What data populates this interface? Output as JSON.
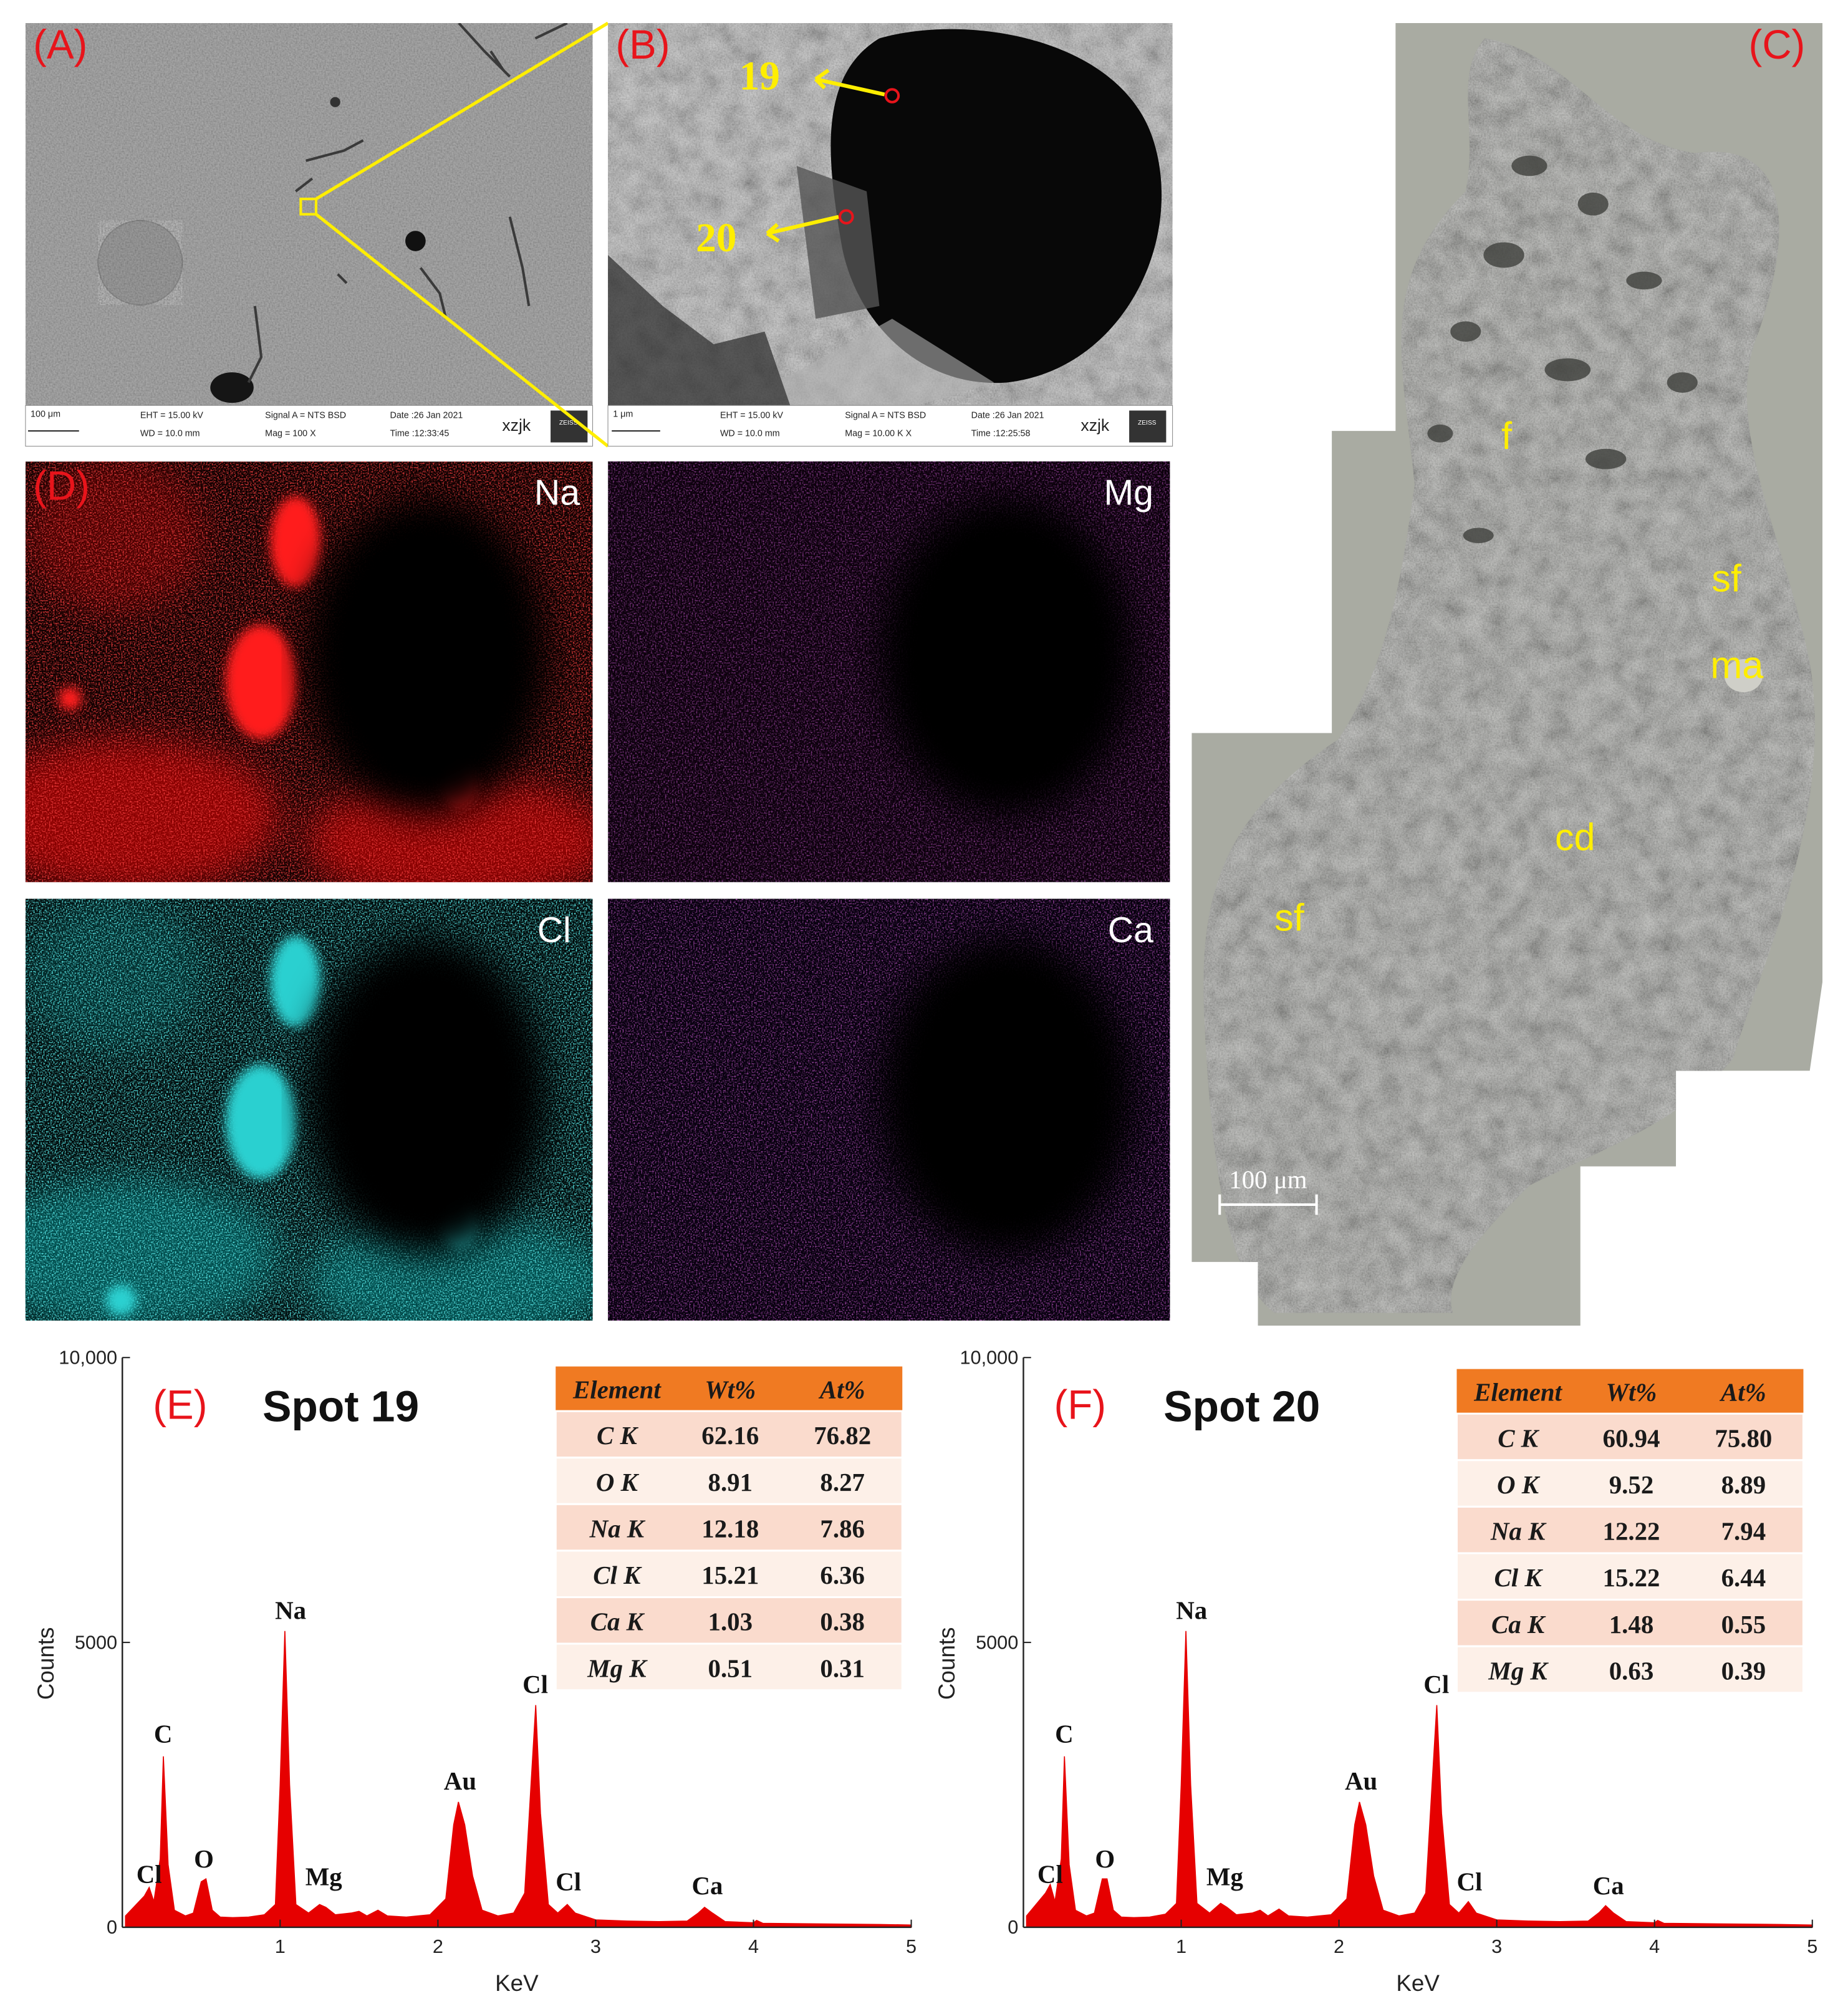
{
  "panel_a": {
    "label": "(A)",
    "scale_bar": "100 μm",
    "eht": "EHT = 15.00 kV",
    "wd": "WD = 10.0 mm",
    "signal": "Signal A = NTS BSD",
    "mag": "Mag =  100 X",
    "date": "Date :26 Jan 2021",
    "time": "Time :12:33:45",
    "user": "xzjk",
    "logo": "ZEISS"
  },
  "panel_b": {
    "label": "(B)",
    "scale_bar": "1 μm",
    "eht": "EHT = 15.00 kV",
    "wd": "WD = 10.0 mm",
    "signal": "Signal A = NTS BSD",
    "mag": "Mag =  10.00 K X",
    "date": "Date :26 Jan 2021",
    "time": "Time :12:25:58",
    "user": "xzjk",
    "logo": "ZEISS",
    "spots": [
      "19",
      "20"
    ]
  },
  "panel_c": {
    "label": "(C)",
    "annotations": [
      "f",
      "sf",
      "ma",
      "cd",
      "sf"
    ],
    "scale_bar": "100 μm"
  },
  "panel_d": {
    "label": "(D)",
    "elements": [
      "Na",
      "Mg",
      "Cl",
      "Ca"
    ]
  },
  "chart_data": [
    {
      "type": "area",
      "panel_label": "(E)",
      "title": "Spot 19",
      "x_label": "KeV",
      "y_label": "Counts",
      "color": "#e60000",
      "x": [
        0.02,
        0.14,
        0.17,
        0.2,
        0.24,
        0.26,
        0.29,
        0.33,
        0.4,
        0.45,
        0.5,
        0.53,
        0.57,
        0.62,
        0.7,
        0.8,
        0.9,
        0.97,
        1.0,
        1.03,
        1.06,
        1.1,
        1.18,
        1.25,
        1.29,
        1.35,
        1.45,
        1.5,
        1.55,
        1.62,
        1.68,
        1.8,
        1.95,
        2.05,
        2.1,
        2.13,
        2.17,
        2.22,
        2.28,
        2.38,
        2.48,
        2.55,
        2.59,
        2.62,
        2.65,
        2.7,
        2.76,
        2.82,
        2.87,
        3.0,
        3.2,
        3.4,
        3.58,
        3.65,
        3.69,
        3.74,
        3.82,
        4.0,
        4.02,
        4.06,
        4.4,
        4.8,
        5.0
      ],
      "values": [
        200,
        550,
        700,
        450,
        1200,
        3000,
        1100,
        300,
        200,
        250,
        800,
        850,
        300,
        180,
        170,
        180,
        220,
        400,
        2500,
        5200,
        2500,
        400,
        250,
        400,
        350,
        220,
        250,
        280,
        200,
        300,
        200,
        180,
        220,
        500,
        1800,
        2200,
        1800,
        900,
        300,
        200,
        250,
        600,
        2500,
        3900,
        2000,
        400,
        250,
        400,
        250,
        130,
        110,
        100,
        110,
        250,
        350,
        250,
        100,
        80,
        120,
        70,
        60,
        50,
        40
      ],
      "xlim": [
        0,
        5
      ],
      "ylim": [
        0,
        10000
      ],
      "xticks": [
        1,
        2,
        3,
        4,
        5
      ],
      "yticks": [
        0,
        5000,
        {
          "value": 10000,
          "label": "10,000"
        }
      ],
      "peak_labels": [
        "Cl",
        "C",
        "O",
        "Na",
        "Mg",
        "Au",
        "Cl",
        "Cl",
        "Ca"
      ],
      "table": {
        "columns": [
          "Element",
          "Wt%",
          "At%"
        ],
        "rows": [
          [
            "C K",
            "62.16",
            "76.82"
          ],
          [
            "O K",
            "8.91",
            "8.27"
          ],
          [
            "Na K",
            "12.18",
            "7.86"
          ],
          [
            "Cl K",
            "15.21",
            "6.36"
          ],
          [
            "Ca K",
            "1.03",
            "0.38"
          ],
          [
            "Mg K",
            "0.51",
            "0.31"
          ]
        ]
      }
    },
    {
      "type": "area",
      "panel_label": "(F)",
      "title": "Spot 20",
      "x_label": "KeV",
      "y_label": "Counts",
      "color": "#e60000",
      "x": [
        0.02,
        0.14,
        0.17,
        0.2,
        0.24,
        0.26,
        0.29,
        0.33,
        0.4,
        0.45,
        0.5,
        0.53,
        0.57,
        0.62,
        0.7,
        0.8,
        0.9,
        0.97,
        1.0,
        1.03,
        1.06,
        1.1,
        1.18,
        1.25,
        1.29,
        1.35,
        1.45,
        1.5,
        1.55,
        1.62,
        1.68,
        1.8,
        1.95,
        2.05,
        2.1,
        2.13,
        2.17,
        2.22,
        2.28,
        2.38,
        2.48,
        2.55,
        2.59,
        2.62,
        2.65,
        2.7,
        2.76,
        2.82,
        2.87,
        3.0,
        3.2,
        3.4,
        3.58,
        3.65,
        3.69,
        3.74,
        3.82,
        4.0,
        4.02,
        4.06,
        4.4,
        4.8,
        5.0
      ],
      "values": [
        200,
        600,
        750,
        450,
        1200,
        3000,
        1100,
        300,
        200,
        250,
        850,
        850,
        300,
        180,
        170,
        180,
        230,
        420,
        2500,
        5200,
        2500,
        420,
        250,
        420,
        350,
        220,
        250,
        300,
        200,
        320,
        200,
        180,
        220,
        500,
        1800,
        2200,
        1800,
        900,
        300,
        200,
        250,
        600,
        2500,
        3900,
        2000,
        400,
        250,
        450,
        250,
        130,
        110,
        100,
        110,
        260,
        380,
        250,
        100,
        80,
        120,
        70,
        60,
        50,
        40
      ],
      "xlim": [
        0,
        5
      ],
      "ylim": [
        0,
        10000
      ],
      "xticks": [
        1,
        2,
        3,
        4,
        5
      ],
      "yticks": [
        0,
        5000,
        {
          "value": 10000,
          "label": "10,000"
        }
      ],
      "peak_labels": [
        "Cl",
        "C",
        "O",
        "Na",
        "Mg",
        "Au",
        "Cl",
        "Cl",
        "Ca"
      ],
      "table": {
        "columns": [
          "Element",
          "Wt%",
          "At%"
        ],
        "rows": [
          [
            "C K",
            "60.94",
            "75.80"
          ],
          [
            "O K",
            "9.52",
            "8.89"
          ],
          [
            "Na K",
            "12.22",
            "7.94"
          ],
          [
            "Cl K",
            "15.22",
            "6.44"
          ],
          [
            "Ca K",
            "1.48",
            "0.55"
          ],
          [
            "Mg K",
            "0.63",
            "0.39"
          ]
        ]
      }
    }
  ]
}
